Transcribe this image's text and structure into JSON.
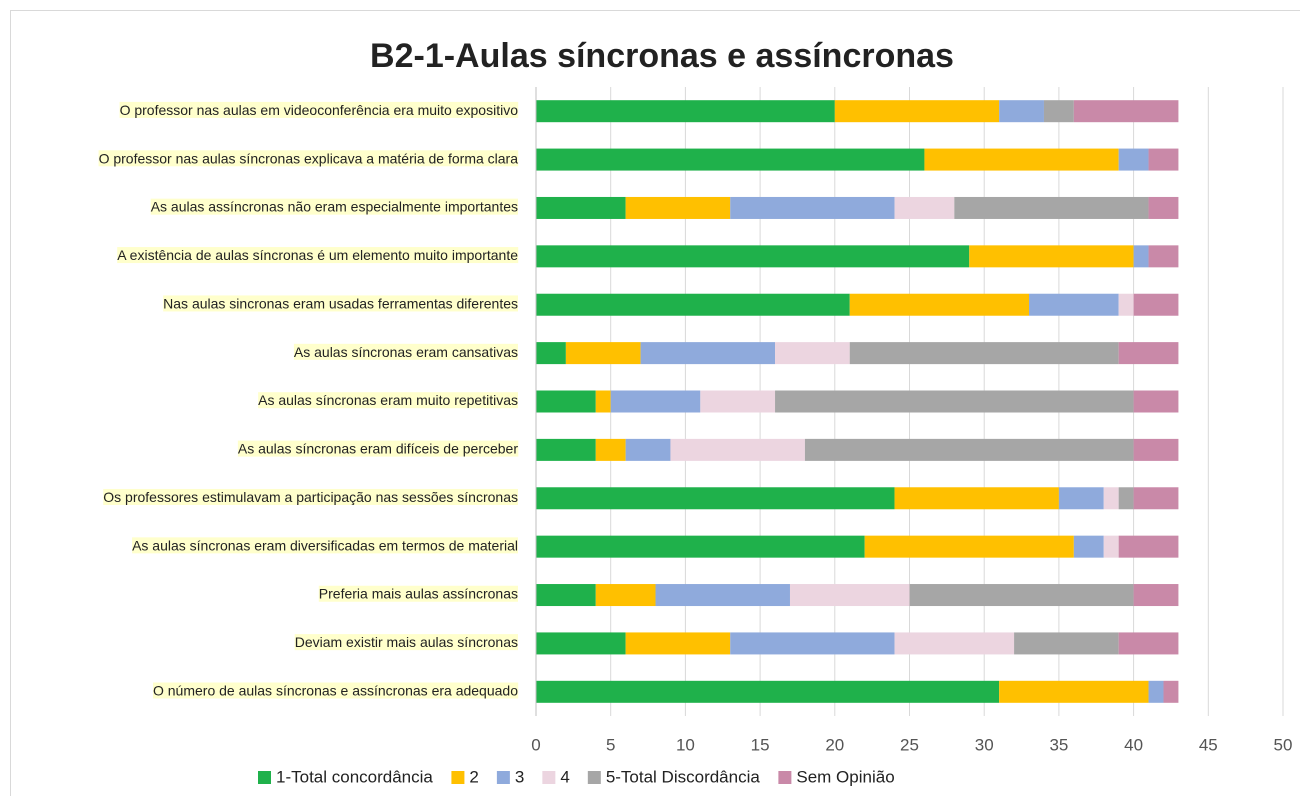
{
  "chart_data": {
    "type": "stacked_barh",
    "title": "B2-1-Aulas síncronas e assíncronas",
    "categories": [
      "O professor nas aulas em videoconferência era muito expositivo",
      "O professor nas aulas síncronas explicava a matéria de forma clara",
      "As aulas assíncronas não eram especialmente importantes",
      "A existência de aulas síncronas é um elemento muito importante",
      "Nas aulas sincronas eram usadas ferramentas diferentes",
      "As aulas síncronas eram cansativas",
      "As aulas síncronas eram muito repetitivas",
      "As aulas síncronas eram difíceis de perceber",
      "Os professores estimulavam a participação nas sessões síncronas",
      "As aulas síncronas eram diversificadas em termos de material",
      "Preferia mais aulas assíncronas",
      "Deviam existir mais aulas síncronas",
      "O número de aulas síncronas e assíncronas era adequado"
    ],
    "series": [
      {
        "name": "1-Total concordância",
        "color": "#1fb14b",
        "values": [
          20,
          26,
          6,
          29,
          21,
          2,
          4,
          4,
          24,
          22,
          4,
          6,
          31
        ]
      },
      {
        "name": "2",
        "color": "#ffc000",
        "values": [
          11,
          13,
          7,
          11,
          12,
          5,
          1,
          2,
          11,
          14,
          4,
          7,
          10
        ]
      },
      {
        "name": "3",
        "color": "#8faadc",
        "values": [
          3,
          2,
          11,
          1,
          6,
          9,
          6,
          3,
          3,
          2,
          9,
          11,
          1
        ]
      },
      {
        "name": "4",
        "color": "#ecd5e0",
        "values": [
          0,
          0,
          4,
          0,
          1,
          5,
          5,
          9,
          1,
          1,
          8,
          8,
          0
        ]
      },
      {
        "name": "5-Total Discordância",
        "color": "#a6a6a6",
        "values": [
          2,
          0,
          13,
          0,
          0,
          18,
          24,
          22,
          1,
          0,
          15,
          7,
          0
        ]
      },
      {
        "name": "Sem Opinião",
        "color": "#c989a8",
        "values": [
          7,
          2,
          2,
          2,
          3,
          4,
          3,
          3,
          3,
          4,
          3,
          4,
          1
        ]
      }
    ],
    "xlim": [
      0,
      50
    ],
    "xticks": [
      0,
      5,
      10,
      15,
      20,
      25,
      30,
      35,
      40,
      45,
      50
    ],
    "grid": true
  }
}
